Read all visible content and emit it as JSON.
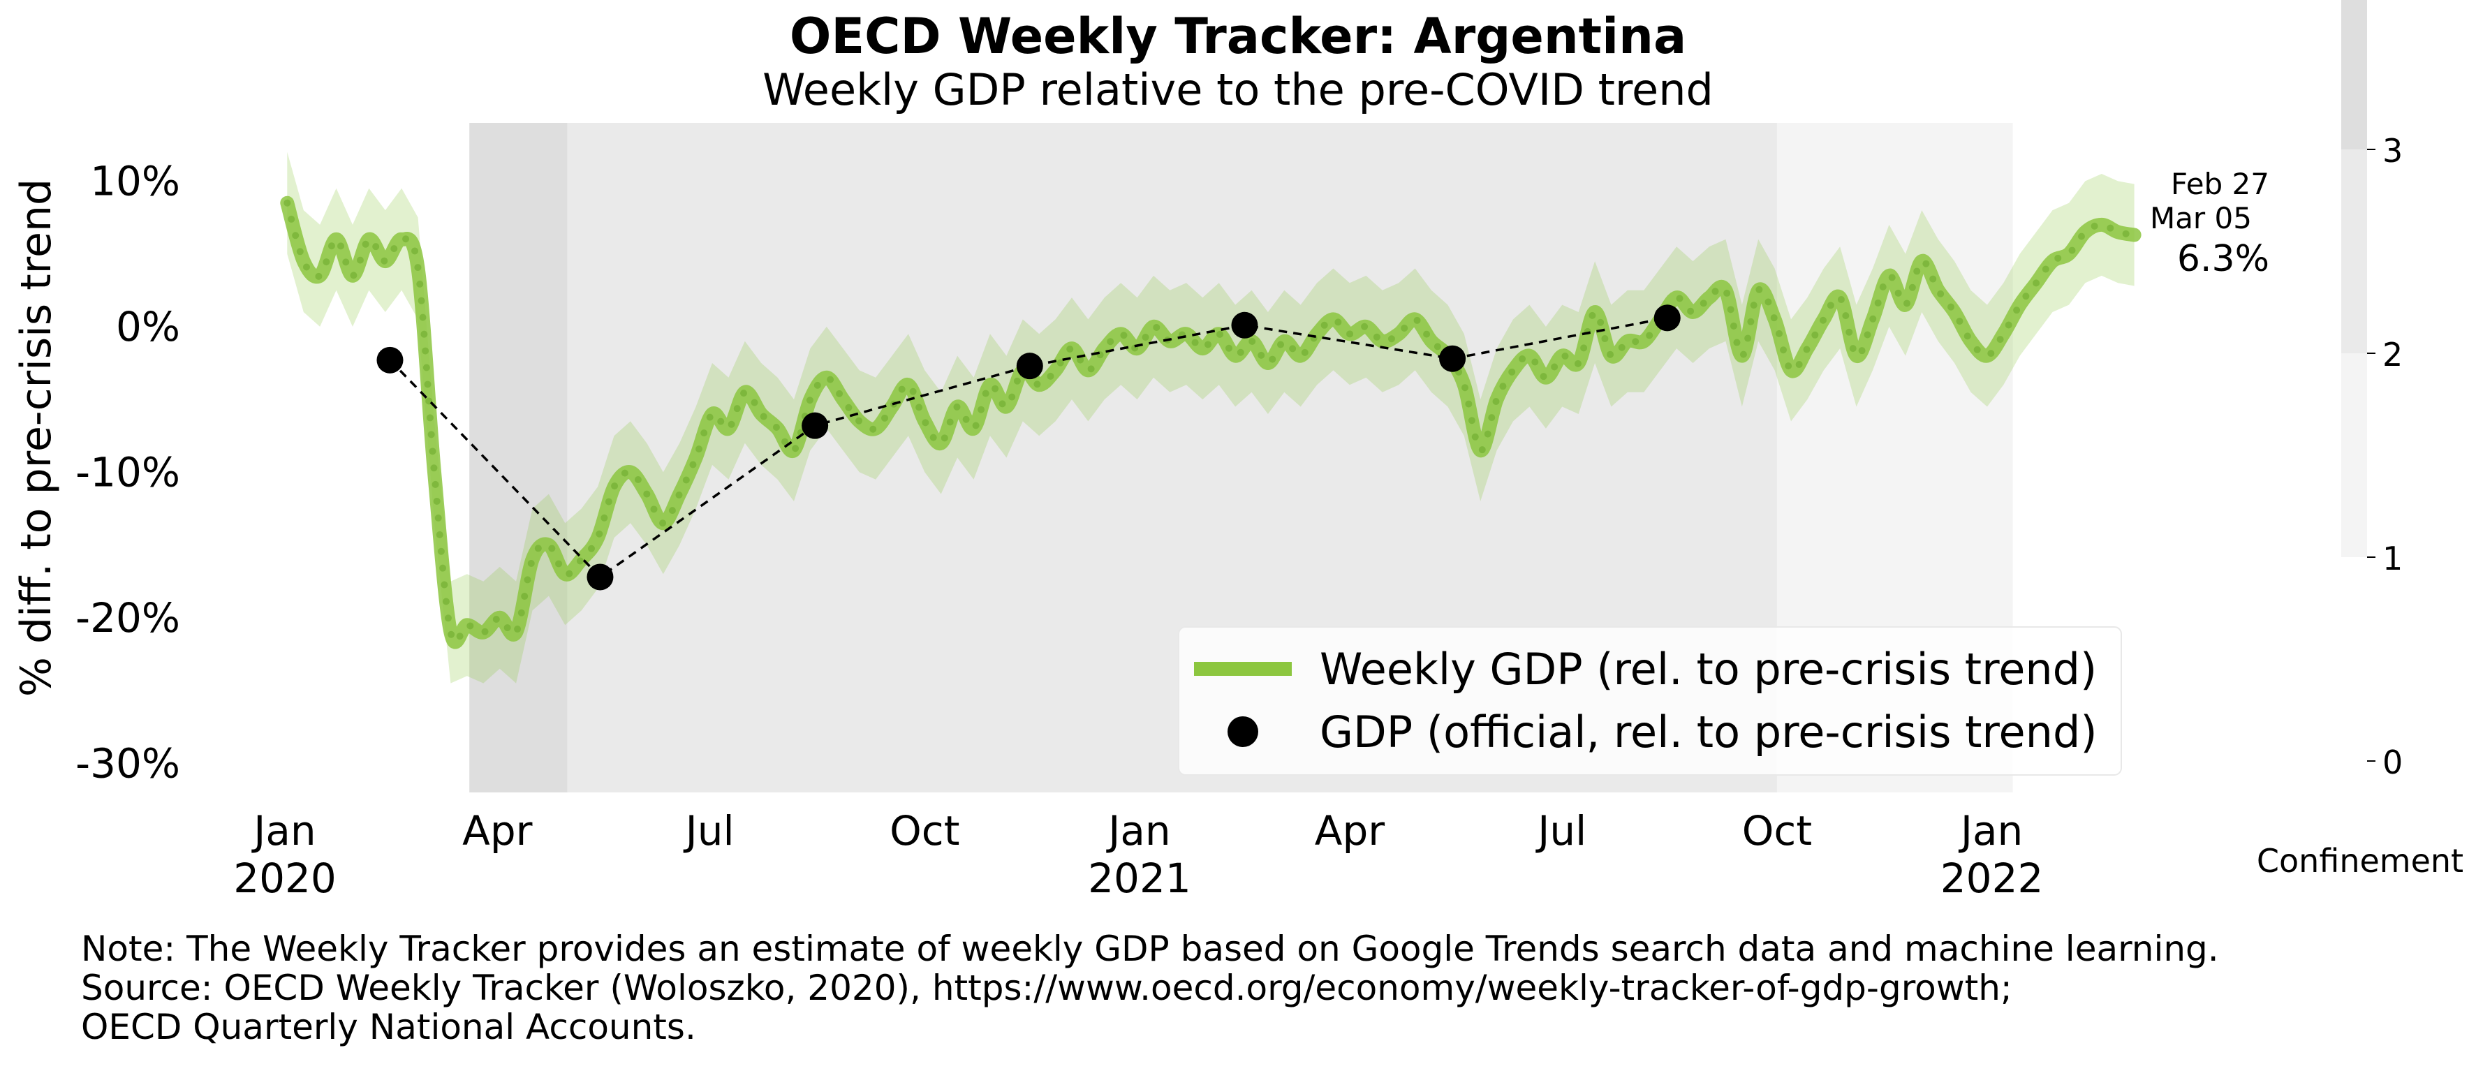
{
  "title": "OECD Weekly Tracker: Argentina",
  "subtitle": "Weekly GDP relative to the pre-COVID trend",
  "ylabel": "% diff. to pre-crisis trend",
  "colorbar_label": "Confinement",
  "annotation": {
    "date1": "Feb 27",
    "date2": "Mar 05",
    "value": "6.3%"
  },
  "legend": {
    "weekly": "Weekly GDP (rel. to pre-crisis trend)",
    "official": "GDP (official, rel. to pre-crisis trend)"
  },
  "notes": [
    "Note: The Weekly Tracker provides an estimate of weekly GDP based on Google Trends search data and machine learning.",
    "Source: OECD Weekly Tracker (Woloszko, 2020), https://www.oecd.org/economy/weekly-tracker-of-gdp-growth;",
    "OECD Quarterly National Accounts."
  ],
  "chart_data": {
    "type": "line",
    "x_axis": {
      "start": "2020-01-01",
      "end": "2022-03-10",
      "ticks": [
        {
          "date": "2020-01-01",
          "label": [
            "Jan",
            "2020"
          ]
        },
        {
          "date": "2020-04-01",
          "label": [
            "Apr"
          ]
        },
        {
          "date": "2020-07-01",
          "label": [
            "Jul"
          ]
        },
        {
          "date": "2020-10-01",
          "label": [
            "Oct"
          ]
        },
        {
          "date": "2021-01-01",
          "label": [
            "Jan",
            "2021"
          ]
        },
        {
          "date": "2021-04-01",
          "label": [
            "Apr"
          ]
        },
        {
          "date": "2021-07-01",
          "label": [
            "Jul"
          ]
        },
        {
          "date": "2021-10-01",
          "label": [
            "Oct"
          ]
        },
        {
          "date": "2022-01-01",
          "label": [
            "Jan",
            "2022"
          ]
        }
      ]
    },
    "y_axis": {
      "ylim": [
        -32,
        14
      ],
      "ticks": [
        10,
        0,
        -10,
        -20,
        -30
      ],
      "tick_labels": [
        "10%",
        "0%",
        "-10%",
        "-20%",
        "-30%"
      ]
    },
    "confinement_bands": [
      {
        "start": "2020-03-20",
        "end": "2020-05-01",
        "level": 3
      },
      {
        "start": "2020-05-01",
        "end": "2021-10-01",
        "level": 2
      },
      {
        "start": "2021-10-01",
        "end": "2022-01-10",
        "level": 1
      }
    ],
    "colorbar": {
      "ticks": [
        0,
        1,
        2,
        3
      ],
      "colors": [
        "#ffffff",
        "#f4f4f4",
        "#eaeaea",
        "#dedede"
      ]
    },
    "series": [
      {
        "name": "Weekly GDP (rel. to pre-crisis trend)",
        "color": "#8cc63f",
        "band_color": "#8cc63f",
        "band_halfwidth": 3.5,
        "points": [
          [
            "2020-01-02",
            8.5
          ],
          [
            "2020-01-09",
            4.5
          ],
          [
            "2020-01-16",
            3.5
          ],
          [
            "2020-01-23",
            6.0
          ],
          [
            "2020-01-30",
            3.5
          ],
          [
            "2020-02-06",
            6.0
          ],
          [
            "2020-02-13",
            4.5
          ],
          [
            "2020-02-20",
            6.0
          ],
          [
            "2020-02-27",
            4.0
          ],
          [
            "2020-03-05",
            -10.0
          ],
          [
            "2020-03-12",
            -21.0
          ],
          [
            "2020-03-19",
            -20.5
          ],
          [
            "2020-03-26",
            -21.0
          ],
          [
            "2020-04-02",
            -20.0
          ],
          [
            "2020-04-09",
            -21.0
          ],
          [
            "2020-04-16",
            -16.0
          ],
          [
            "2020-04-23",
            -15.0
          ],
          [
            "2020-04-30",
            -17.0
          ],
          [
            "2020-05-07",
            -16.0
          ],
          [
            "2020-05-14",
            -14.5
          ],
          [
            "2020-05-21",
            -11.0
          ],
          [
            "2020-05-28",
            -10.0
          ],
          [
            "2020-06-04",
            -11.5
          ],
          [
            "2020-06-11",
            -13.5
          ],
          [
            "2020-06-18",
            -11.5
          ],
          [
            "2020-06-25",
            -9.0
          ],
          [
            "2020-07-02",
            -6.0
          ],
          [
            "2020-07-09",
            -7.0
          ],
          [
            "2020-07-16",
            -4.5
          ],
          [
            "2020-07-23",
            -6.0
          ],
          [
            "2020-07-30",
            -7.0
          ],
          [
            "2020-08-06",
            -8.5
          ],
          [
            "2020-08-13",
            -5.0
          ],
          [
            "2020-08-20",
            -3.5
          ],
          [
            "2020-08-27",
            -5.0
          ],
          [
            "2020-09-03",
            -6.5
          ],
          [
            "2020-09-10",
            -7.0
          ],
          [
            "2020-09-17",
            -5.5
          ],
          [
            "2020-09-24",
            -4.0
          ],
          [
            "2020-10-01",
            -6.5
          ],
          [
            "2020-10-08",
            -8.0
          ],
          [
            "2020-10-15",
            -5.5
          ],
          [
            "2020-10-22",
            -7.0
          ],
          [
            "2020-10-29",
            -4.0
          ],
          [
            "2020-11-05",
            -5.5
          ],
          [
            "2020-11-12",
            -3.0
          ],
          [
            "2020-11-19",
            -4.0
          ],
          [
            "2020-11-26",
            -3.0
          ],
          [
            "2020-12-03",
            -1.5
          ],
          [
            "2020-12-10",
            -3.0
          ],
          [
            "2020-12-17",
            -1.5
          ],
          [
            "2020-12-24",
            -0.5
          ],
          [
            "2020-12-31",
            -1.5
          ],
          [
            "2021-01-07",
            0.0
          ],
          [
            "2021-01-14",
            -1.0
          ],
          [
            "2021-01-21",
            -0.5
          ],
          [
            "2021-01-28",
            -1.5
          ],
          [
            "2021-02-04",
            -0.5
          ],
          [
            "2021-02-11",
            -2.0
          ],
          [
            "2021-02-18",
            -1.0
          ],
          [
            "2021-02-25",
            -2.5
          ],
          [
            "2021-03-04",
            -1.0
          ],
          [
            "2021-03-11",
            -2.0
          ],
          [
            "2021-03-18",
            -0.5
          ],
          [
            "2021-03-25",
            0.5
          ],
          [
            "2021-04-01",
            -0.5
          ],
          [
            "2021-04-08",
            0.0
          ],
          [
            "2021-04-15",
            -1.0
          ],
          [
            "2021-04-22",
            -0.5
          ],
          [
            "2021-04-29",
            0.5
          ],
          [
            "2021-05-06",
            -1.0
          ],
          [
            "2021-05-13",
            -2.0
          ],
          [
            "2021-05-20",
            -4.0
          ],
          [
            "2021-05-27",
            -8.5
          ],
          [
            "2021-06-03",
            -5.0
          ],
          [
            "2021-06-10",
            -3.0
          ],
          [
            "2021-06-17",
            -2.0
          ],
          [
            "2021-06-24",
            -3.5
          ],
          [
            "2021-07-01",
            -2.0
          ],
          [
            "2021-07-08",
            -2.5
          ],
          [
            "2021-07-15",
            1.0
          ],
          [
            "2021-07-22",
            -2.0
          ],
          [
            "2021-07-29",
            -1.0
          ],
          [
            "2021-08-05",
            -1.0
          ],
          [
            "2021-08-12",
            0.5
          ],
          [
            "2021-08-19",
            2.0
          ],
          [
            "2021-08-26",
            1.0
          ],
          [
            "2021-09-02",
            2.0
          ],
          [
            "2021-09-09",
            2.5
          ],
          [
            "2021-09-16",
            -2.0
          ],
          [
            "2021-09-23",
            2.5
          ],
          [
            "2021-09-30",
            0.5
          ],
          [
            "2021-10-07",
            -3.0
          ],
          [
            "2021-10-14",
            -1.5
          ],
          [
            "2021-10-21",
            0.5
          ],
          [
            "2021-10-28",
            2.0
          ],
          [
            "2021-11-04",
            -2.0
          ],
          [
            "2021-11-11",
            0.5
          ],
          [
            "2021-11-18",
            3.5
          ],
          [
            "2021-11-25",
            1.5
          ],
          [
            "2021-12-02",
            4.5
          ],
          [
            "2021-12-09",
            2.5
          ],
          [
            "2021-12-16",
            1.0
          ],
          [
            "2021-12-23",
            -1.0
          ],
          [
            "2021-12-30",
            -2.0
          ],
          [
            "2022-01-06",
            -0.5
          ],
          [
            "2022-01-13",
            1.5
          ],
          [
            "2022-01-20",
            3.0
          ],
          [
            "2022-01-27",
            4.5
          ],
          [
            "2022-02-03",
            5.0
          ],
          [
            "2022-02-10",
            6.5
          ],
          [
            "2022-02-17",
            7.0
          ],
          [
            "2022-02-24",
            6.5
          ],
          [
            "2022-03-03",
            6.3
          ]
        ]
      },
      {
        "name": "GDP (official, rel. to pre-crisis trend)",
        "color": "#000000",
        "points": [
          [
            "2020-02-15",
            -2.3
          ],
          [
            "2020-05-15",
            -17.2
          ],
          [
            "2020-08-15",
            -6.8
          ],
          [
            "2020-11-15",
            -2.7
          ],
          [
            "2021-02-15",
            0.1
          ],
          [
            "2021-05-15",
            -2.2
          ],
          [
            "2021-08-15",
            0.6
          ]
        ]
      }
    ]
  }
}
